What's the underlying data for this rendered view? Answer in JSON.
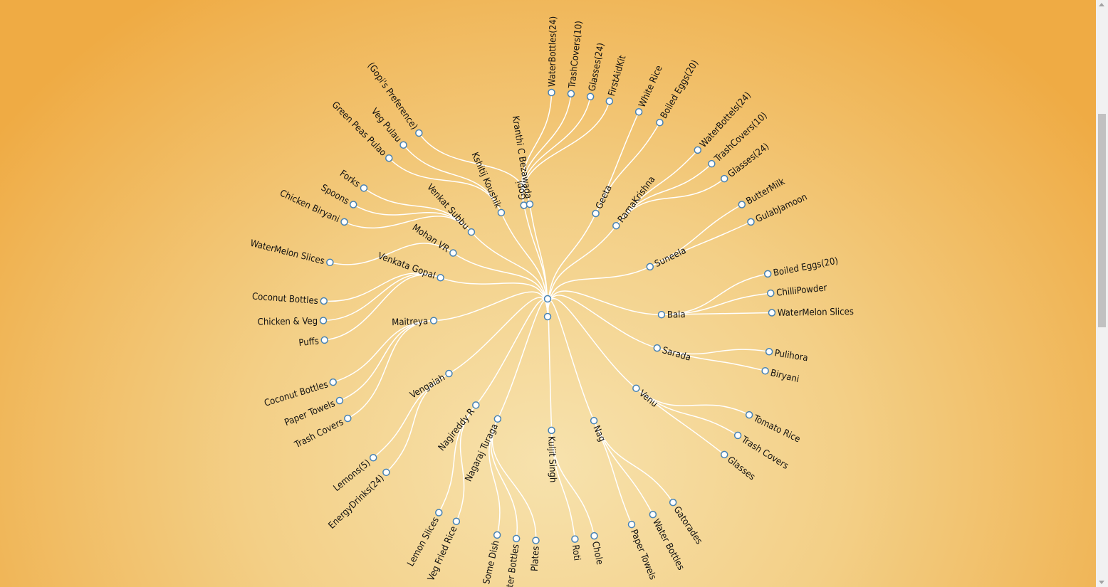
{
  "diagram": {
    "type": "radial-tree",
    "root": {
      "name": "",
      "children": [
        {
          "name": "Gopi",
          "angle": -12,
          "children": [
            {
              "name": "WaterBottles(24)",
              "angle": 1
            },
            {
              "name": "TrashCovers(10)",
              "angle": 6
            },
            {
              "name": "Glasses(24)",
              "angle": 11
            },
            {
              "name": "FirstAidKit",
              "angle": 16
            }
          ]
        },
        {
          "name": "Geeta",
          "angle": 25,
          "children": [
            {
              "name": "White Rice",
              "angle": 24
            },
            {
              "name": "Boiled Eggs(20)",
              "angle": 30
            }
          ]
        },
        {
          "name": "RamaKrishna",
          "angle": 37,
          "children": [
            {
              "name": "WaterBottels(24)",
              "angle": 42
            },
            {
              "name": "TrashCovers(10)",
              "angle": 47
            },
            {
              "name": "Glasses(24)",
              "angle": 52
            }
          ]
        },
        {
          "name": "Suneela",
          "angle": 64,
          "children": [
            {
              "name": "ButterMilk",
              "angle": 60
            },
            {
              "name": "GulabJamoon",
              "angle": 65
            }
          ]
        },
        {
          "name": "Bala",
          "angle": 89,
          "children": [
            {
              "name": "Boiled Eggs(20)",
              "angle": 79
            },
            {
              "name": "ChilliPowder",
              "angle": 84
            },
            {
              "name": "WaterMelon Slices",
              "angle": 89
            }
          ]
        },
        {
          "name": "Sarada",
          "angle": 106,
          "children": [
            {
              "name": "Pulihora",
              "angle": 99
            },
            {
              "name": "Biryani",
              "angle": 104
            }
          ]
        },
        {
          "name": "Venu",
          "angle": 129,
          "children": [
            {
              "name": "Tomato Rice",
              "angle": 116
            },
            {
              "name": "Trash Covers",
              "angle": 122
            },
            {
              "name": "Glasses",
              "angle": 128
            }
          ]
        },
        {
          "name": "Nag",
          "angle": 156,
          "children": [
            {
              "name": "Gatorades",
              "angle": 146
            },
            {
              "name": "Water Bottles",
              "angle": 152
            },
            {
              "name": "Paper Towels",
              "angle": 158
            }
          ]
        },
        {
          "name": "Kuljit Singh",
          "angle": 178,
          "children": [
            {
              "name": "Chole",
              "angle": 168
            },
            {
              "name": "Roti",
              "angle": 173
            }
          ]
        },
        {
          "name": "Nagaraj Turaga",
          "angle": 206,
          "children": [
            {
              "name": "Plates",
              "angle": 183
            },
            {
              "name": "Water Bottles",
              "angle": 188
            },
            {
              "name": "Some Dish",
              "angle": 193
            }
          ]
        },
        {
          "name": "Nagireddy R",
          "angle": 219,
          "children": [
            {
              "name": "Veg Fried Rice",
              "angle": 204
            },
            {
              "name": "Lemon Slices",
              "angle": 209
            }
          ]
        },
        {
          "name": "Vengaiah",
          "angle": 240,
          "children": [
            {
              "name": "EnergyDrinks(24)",
              "angle": 226
            },
            {
              "name": "Lemons(5)",
              "angle": 231
            }
          ]
        },
        {
          "name": "Maitreya",
          "angle": 268,
          "children": [
            {
              "name": "Trash Covers",
              "angle": 243
            },
            {
              "name": "Paper Towels",
              "angle": 248
            },
            {
              "name": "Coconut Bottles",
              "angle": 253
            }
          ]
        },
        {
          "name": "Venkata Gopal",
          "angle": 290,
          "children": [
            {
              "name": "Puffs",
              "angle": 264
            },
            {
              "name": "Chicken & Veg",
              "angle": 269
            },
            {
              "name": "Coconut Bottles",
              "angle": 274
            }
          ]
        },
        {
          "name": "Mohan VR",
          "angle": 304,
          "children": [
            {
              "name": "WaterMelon Slices",
              "angle": 284
            }
          ]
        },
        {
          "name": "Venkat Subbu",
          "angle": 318,
          "children": [
            {
              "name": "Chicken Biryani",
              "angle": 295
            },
            {
              "name": "Spoons",
              "angle": 300
            },
            {
              "name": "Forks",
              "angle": 305
            }
          ]
        },
        {
          "name": "Kshitij Koushik",
          "angle": 336,
          "children": [
            {
              "name": "Green Peas Pulao",
              "angle": 315
            },
            {
              "name": "Veg Pulau",
              "angle": 320
            }
          ]
        },
        {
          "name": "Kranthi C Bezawada",
          "angle": 351,
          "children": [
            {
              "name": "(Gopi's Preference)",
              "angle": 325
            }
          ]
        },
        {
          "name": "",
          "angle": 0,
          "short": true
        }
      ]
    }
  }
}
